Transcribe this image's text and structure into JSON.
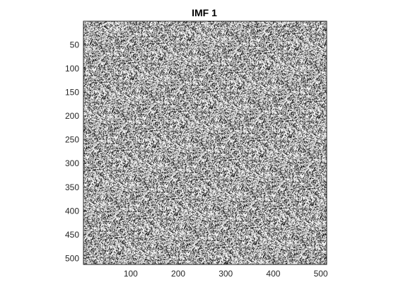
{
  "chart_data": {
    "type": "heatmap",
    "title": "IMF 1",
    "xlabel": "",
    "ylabel": "",
    "xlim": [
      0.5,
      512.5
    ],
    "ylim": [
      0.5,
      512.5
    ],
    "y_reversed": true,
    "colormap": "gray",
    "grid": false,
    "x_ticks": [
      100,
      200,
      300,
      400,
      500
    ],
    "y_ticks": [
      50,
      100,
      150,
      200,
      250,
      300,
      350,
      400,
      450,
      500
    ],
    "x_tick_labels": [
      "100",
      "200",
      "300",
      "400",
      "500"
    ],
    "y_tick_labels": [
      "50",
      "100",
      "150",
      "200",
      "250",
      "300",
      "350",
      "400",
      "450",
      "500"
    ],
    "image_size": [
      512,
      512
    ]
  }
}
